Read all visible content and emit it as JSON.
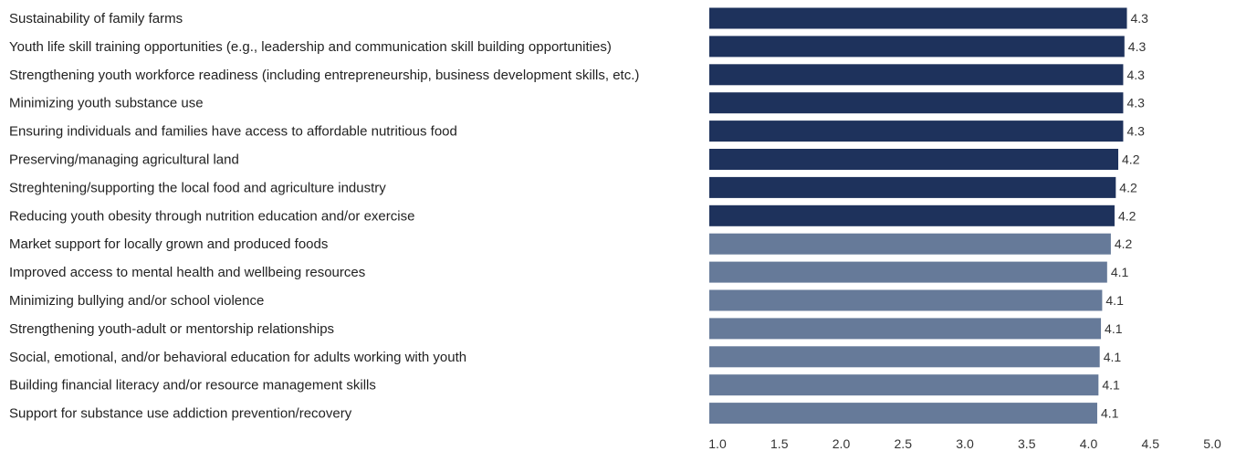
{
  "chart_data": {
    "type": "bar",
    "orientation": "horizontal",
    "categories": [
      "Sustainability of family farms",
      "Youth life skill training opportunities (e.g., leadership and communication skill building opportunities)",
      "Strengthening youth workforce readiness (including entrepreneurship, business development skills, etc.)",
      "Minimizing youth substance use",
      "Ensuring individuals and families have access to affordable nutritious food",
      "Preserving/managing agricultural land",
      "Streghtening/supporting the local food and agriculture industry",
      "Reducing youth obesity through nutrition education and/or exercise",
      "Market support for locally grown and produced foods",
      "Improved access to mental health and wellbeing resources",
      "Minimizing bullying and/or school violence",
      "Strengthening youth-adult or mentorship relationships",
      "Social, emotional, and/or behavioral education for adults working with youth",
      "Building financial literacy and/or resource management skills",
      "Support for substance use addiction prevention/recovery"
    ],
    "values": [
      4.3,
      4.3,
      4.3,
      4.3,
      4.3,
      4.2,
      4.2,
      4.2,
      4.2,
      4.1,
      4.1,
      4.1,
      4.1,
      4.1,
      4.1
    ],
    "precise_values": [
      4.31,
      4.29,
      4.28,
      4.28,
      4.28,
      4.24,
      4.22,
      4.21,
      4.18,
      4.15,
      4.11,
      4.1,
      4.09,
      4.08,
      4.07
    ],
    "value_labels": [
      "4.3",
      "4.3",
      "4.3",
      "4.3",
      "4.3",
      "4.2",
      "4.2",
      "4.2",
      "4.2",
      "4.1",
      "4.1",
      "4.1",
      "4.1",
      "4.1",
      "4.1"
    ],
    "bar_colors": [
      "#1e325c",
      "#1e325c",
      "#1e325c",
      "#1e325c",
      "#1e325c",
      "#1e325c",
      "#1e325c",
      "#1e325c",
      "#667a99",
      "#667a99",
      "#667a99",
      "#667a99",
      "#667a99",
      "#667a99",
      "#667a99"
    ],
    "x_ticks": [
      "1.0",
      "1.5",
      "2.0",
      "2.5",
      "3.0",
      "3.5",
      "4.0",
      "4.5",
      "5.0"
    ],
    "xlim": [
      1.0,
      5.0
    ],
    "grid": false,
    "legend": "none",
    "title": "",
    "xlabel": "",
    "ylabel": ""
  }
}
